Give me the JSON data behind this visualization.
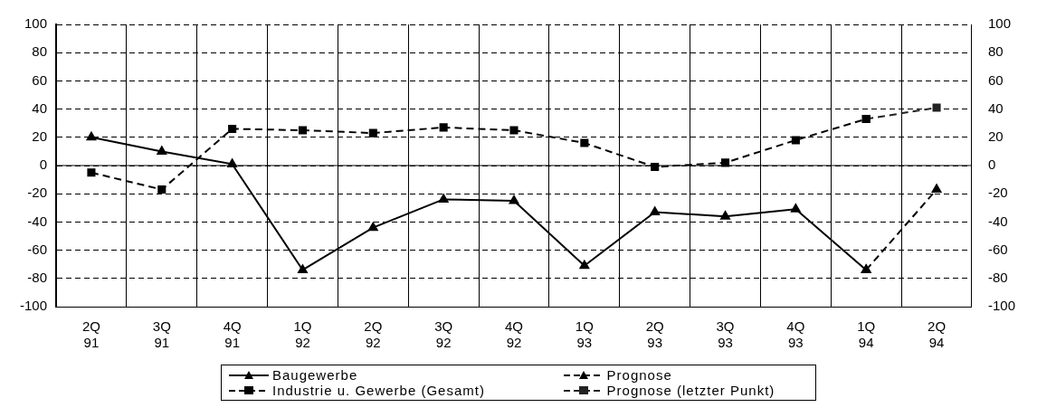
{
  "chart_data": {
    "type": "line",
    "categories": [
      "2Q 91",
      "3Q 91",
      "4Q 91",
      "1Q 92",
      "2Q 92",
      "3Q 92",
      "4Q 92",
      "1Q 93",
      "2Q 93",
      "3Q 93",
      "4Q 93",
      "1Q 94",
      "2Q 94"
    ],
    "series": [
      {
        "name": "Baugewerbe",
        "color": "#000000",
        "marker": "triangle",
        "line_style": "solid",
        "values": [
          20,
          10,
          1,
          -74,
          -44,
          -24,
          -25,
          -71,
          -33,
          -36,
          -31,
          -74,
          null
        ]
      },
      {
        "name": "Prognose",
        "color": "#000000",
        "marker": "triangle",
        "line_style": "dashed",
        "values": [
          null,
          null,
          null,
          null,
          null,
          null,
          null,
          null,
          null,
          null,
          null,
          -74,
          -17
        ]
      },
      {
        "name": "Industrie u. Gewerbe (Gesamt)",
        "color": "#000000",
        "marker": "square",
        "line_style": "dashed",
        "values": [
          -5,
          -17,
          26,
          25,
          23,
          27,
          25,
          16,
          -1,
          2,
          18,
          33,
          null
        ]
      },
      {
        "name": "Prognose (letzter Punkt)",
        "color": "#222222",
        "marker": "square",
        "line_style": "dashed",
        "values": [
          null,
          null,
          null,
          null,
          null,
          null,
          null,
          null,
          null,
          null,
          null,
          33,
          41
        ]
      }
    ],
    "ylim": [
      -100,
      100
    ],
    "yticks": [
      -100,
      -80,
      -60,
      -40,
      -20,
      0,
      20,
      40,
      60,
      80,
      100
    ],
    "y2lim": [
      -100,
      100
    ],
    "y2ticks": [
      -100,
      -80,
      -60,
      -40,
      -20,
      0,
      20,
      40,
      60,
      80,
      100
    ],
    "grid": true,
    "legend": "bottom"
  }
}
